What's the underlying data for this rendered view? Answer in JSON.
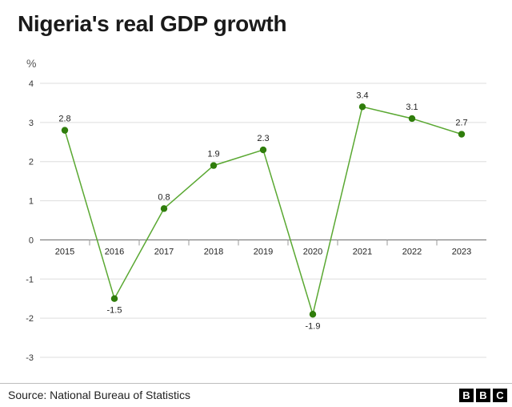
{
  "title": "Nigeria's real GDP growth",
  "source": "Source: National Bureau of Statistics",
  "logo_letters": [
    "B",
    "B",
    "C"
  ],
  "colors": {
    "line": "#5aa832",
    "point": "#2f7d0b",
    "grid": "#dddddd",
    "zero": "#777777"
  },
  "chart_data": {
    "type": "line",
    "title": "Nigeria's real GDP growth",
    "ylabel": "%",
    "xlabel": "",
    "categories": [
      "2015",
      "2016",
      "2017",
      "2018",
      "2019",
      "2020",
      "2021",
      "2022",
      "2023"
    ],
    "values": [
      2.8,
      -1.5,
      0.8,
      1.9,
      2.3,
      -1.9,
      3.4,
      3.1,
      2.7
    ],
    "data_labels": [
      "2.8",
      "-1.5",
      "0.8",
      "1.9",
      "2.3",
      "-1.9",
      "3.4",
      "3.1",
      "2.7"
    ],
    "ylim": [
      -3,
      4
    ],
    "yticks": [
      "4",
      "3",
      "2",
      "1",
      "0",
      "-1",
      "-2",
      "-3"
    ],
    "grid": true,
    "legend": false
  }
}
